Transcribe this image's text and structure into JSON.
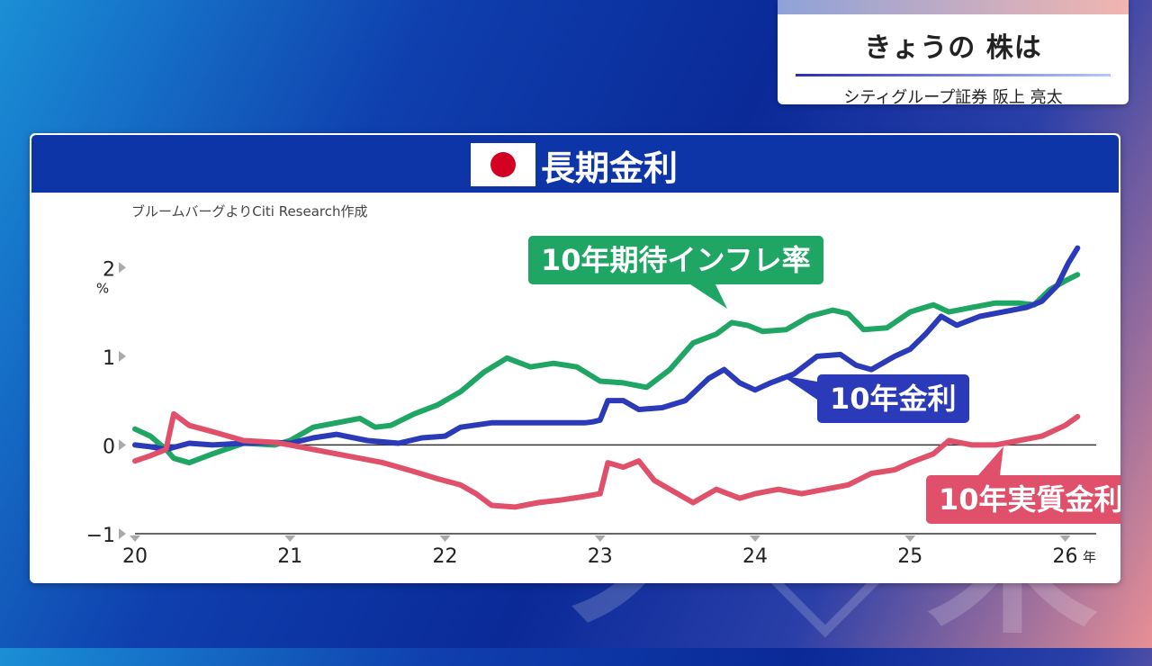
{
  "header": {
    "title": "きょうの 株は",
    "subtitle": "シティグループ証券 阪上 亮太"
  },
  "panel": {
    "title": "長期金利",
    "source": "ブルームバーグよりCiti Research作成"
  },
  "colors": {
    "inflation": "#1fa564",
    "nominal": "#2a3ab8",
    "real": "#e0506a",
    "header_blue": "#0e35a8"
  },
  "chart_data": {
    "type": "line",
    "title": "長期金利",
    "ylabel": "%",
    "xlabel": "年",
    "ylim": [
      -1,
      2.5
    ],
    "xlim": [
      2020,
      2026.2
    ],
    "x_ticks": [
      {
        "v": 2020,
        "label": "20"
      },
      {
        "v": 2021,
        "label": "21"
      },
      {
        "v": 2022,
        "label": "22"
      },
      {
        "v": 2023,
        "label": "23"
      },
      {
        "v": 2024,
        "label": "24"
      },
      {
        "v": 2025,
        "label": "25"
      },
      {
        "v": 2026,
        "label": "26"
      }
    ],
    "y_ticks": [
      {
        "v": 2,
        "label": "2"
      },
      {
        "v": 1,
        "label": "1"
      },
      {
        "v": 0,
        "label": "0"
      },
      {
        "v": -1,
        "label": "−1"
      }
    ],
    "x_unit": "年",
    "y_unit": "%",
    "series": [
      {
        "name": "10年期待インフレ率",
        "key": "inflation",
        "x": [
          2020.0,
          2020.1,
          2020.2,
          2020.25,
          2020.35,
          2020.5,
          2020.7,
          2020.9,
          2021.0,
          2021.15,
          2021.3,
          2021.45,
          2021.55,
          2021.65,
          2021.8,
          2021.95,
          2022.1,
          2022.25,
          2022.4,
          2022.55,
          2022.7,
          2022.85,
          2023.0,
          2023.15,
          2023.3,
          2023.45,
          2023.6,
          2023.75,
          2023.85,
          2023.95,
          2024.05,
          2024.2,
          2024.35,
          2024.5,
          2024.6,
          2024.7,
          2024.85,
          2025.0,
          2025.15,
          2025.25,
          2025.4,
          2025.55,
          2025.7,
          2025.8,
          2025.9,
          2026.0,
          2026.08
        ],
        "y": [
          0.18,
          0.1,
          -0.05,
          -0.15,
          -0.2,
          -0.1,
          0.02,
          0.0,
          0.05,
          0.2,
          0.25,
          0.3,
          0.2,
          0.22,
          0.35,
          0.45,
          0.6,
          0.82,
          0.98,
          0.88,
          0.92,
          0.88,
          0.72,
          0.7,
          0.65,
          0.85,
          1.15,
          1.25,
          1.38,
          1.35,
          1.28,
          1.3,
          1.45,
          1.52,
          1.48,
          1.3,
          1.32,
          1.5,
          1.58,
          1.5,
          1.55,
          1.6,
          1.6,
          1.58,
          1.75,
          1.85,
          1.92
        ]
      },
      {
        "name": "10年金利",
        "key": "nominal",
        "x": [
          2020.0,
          2020.1,
          2020.2,
          2020.35,
          2020.5,
          2020.7,
          2020.9,
          2021.0,
          2021.15,
          2021.3,
          2021.5,
          2021.7,
          2021.85,
          2022.0,
          2022.1,
          2022.3,
          2022.5,
          2022.7,
          2022.9,
          2022.95,
          2023.0,
          2023.05,
          2023.15,
          2023.25,
          2023.4,
          2023.55,
          2023.7,
          2023.8,
          2023.9,
          2024.0,
          2024.1,
          2024.25,
          2024.4,
          2024.55,
          2024.65,
          2024.75,
          2024.9,
          2025.0,
          2025.1,
          2025.2,
          2025.3,
          2025.45,
          2025.6,
          2025.75,
          2025.85,
          2025.95,
          2026.02,
          2026.08
        ],
        "y": [
          0.0,
          -0.02,
          -0.05,
          0.02,
          0.0,
          0.02,
          0.03,
          0.02,
          0.08,
          0.12,
          0.05,
          0.02,
          0.08,
          0.1,
          0.2,
          0.25,
          0.25,
          0.25,
          0.25,
          0.26,
          0.28,
          0.5,
          0.5,
          0.4,
          0.42,
          0.5,
          0.75,
          0.85,
          0.7,
          0.62,
          0.7,
          0.8,
          1.0,
          1.02,
          0.9,
          0.85,
          1.0,
          1.08,
          1.25,
          1.45,
          1.35,
          1.45,
          1.5,
          1.55,
          1.62,
          1.8,
          2.05,
          2.22
        ]
      },
      {
        "name": "10年実質金利",
        "key": "real",
        "x": [
          2020.0,
          2020.1,
          2020.2,
          2020.25,
          2020.35,
          2020.5,
          2020.7,
          2020.9,
          2021.0,
          2021.15,
          2021.3,
          2021.45,
          2021.6,
          2021.8,
          2021.95,
          2022.1,
          2022.2,
          2022.3,
          2022.45,
          2022.6,
          2022.75,
          2022.9,
          2023.0,
          2023.05,
          2023.15,
          2023.25,
          2023.35,
          2023.5,
          2023.6,
          2023.75,
          2023.9,
          2024.0,
          2024.15,
          2024.3,
          2024.45,
          2024.6,
          2024.75,
          2024.9,
          2025.0,
          2025.15,
          2025.25,
          2025.4,
          2025.55,
          2025.7,
          2025.85,
          2026.0,
          2026.08
        ],
        "y": [
          -0.18,
          -0.12,
          -0.05,
          0.35,
          0.22,
          0.15,
          0.05,
          0.03,
          0.0,
          -0.05,
          -0.1,
          -0.15,
          -0.2,
          -0.3,
          -0.38,
          -0.45,
          -0.55,
          -0.68,
          -0.7,
          -0.65,
          -0.62,
          -0.58,
          -0.55,
          -0.2,
          -0.25,
          -0.18,
          -0.4,
          -0.55,
          -0.65,
          -0.5,
          -0.6,
          -0.55,
          -0.5,
          -0.55,
          -0.5,
          -0.45,
          -0.32,
          -0.28,
          -0.2,
          -0.1,
          0.05,
          0.0,
          0.0,
          0.05,
          0.1,
          0.22,
          0.32
        ]
      }
    ],
    "annotations": [
      {
        "series": "inflation",
        "text": "10年期待インフレ率"
      },
      {
        "series": "nominal",
        "text": "10年金利"
      },
      {
        "series": "real",
        "text": "10年実質金利"
      }
    ]
  }
}
